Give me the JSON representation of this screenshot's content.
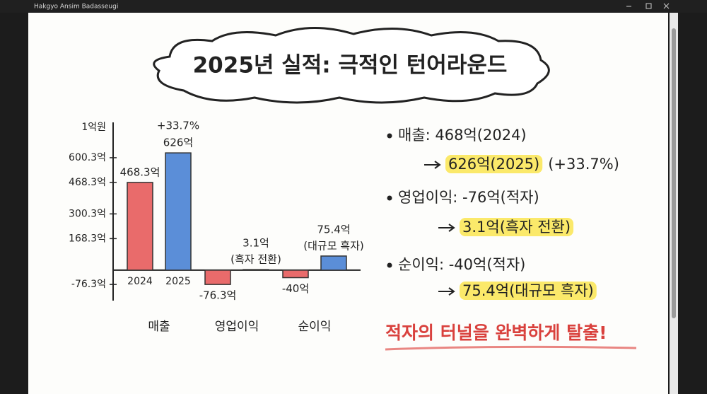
{
  "window_title": "Hakgyo Ansim Badasseugi",
  "chart_data": {
    "type": "bar",
    "title": "2025년 실적: 극적인 턴어라운드",
    "y_label": "1억원",
    "categories": [
      "매출",
      "영업이익",
      "순이익"
    ],
    "series": [
      {
        "name": "2024",
        "color": "#e96b6b",
        "values": [
          468.3,
          -76.3,
          -40
        ],
        "value_labels": [
          "468.3억",
          "-76.3억",
          "-40억"
        ]
      },
      {
        "name": "2025",
        "color": "#5b8ed8",
        "values": [
          626,
          3.1,
          75.4
        ],
        "value_labels": [
          "626억",
          "3.1억",
          "75.4억"
        ]
      }
    ],
    "annotations": [
      "+33.7%",
      "(흑자 전환)",
      "(대규모 흑자)"
    ],
    "ylim": [
      -140,
      770
    ],
    "yticks": [
      {
        "value": 600.3,
        "label": "600.3억"
      },
      {
        "value": 468.3,
        "label": "468.3억"
      },
      {
        "value": 300.3,
        "label": "300.3억"
      },
      {
        "value": 168.3,
        "label": "168.3억"
      },
      {
        "value": -76.3,
        "label": "-76.3억"
      }
    ],
    "grid": false
  },
  "summary": [
    {
      "text": "매출: 468억(2024)",
      "result": "626억(2025)",
      "note": "(+33.7%)"
    },
    {
      "text": "영업이익: -76억(적자)",
      "result": "3.1억(흑자 전환)"
    },
    {
      "text": "순이익: -40억(적자)",
      "result": "75.4억(대규모 흑자)"
    }
  ],
  "conclusion": "적자의 터널을 완벽하게 탈출!"
}
